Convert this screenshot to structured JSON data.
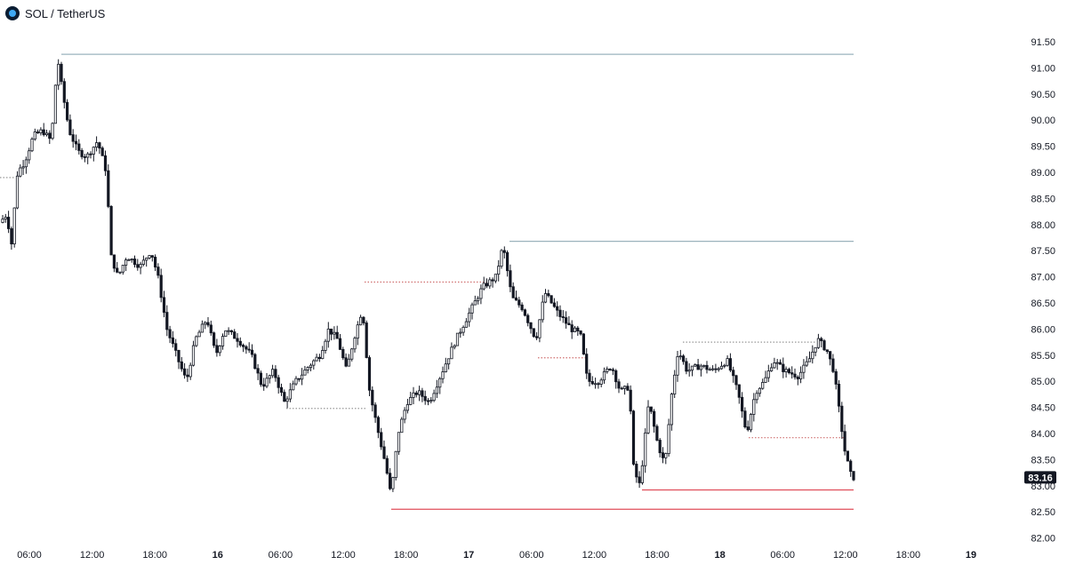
{
  "header": {
    "symbol": "SOL / TetherUS",
    "logo_icon": "solana-logo-icon"
  },
  "chart_data": {
    "type": "candlestick",
    "title": "SOL / TetherUS",
    "y_ticks": [
      "91.50",
      "91.00",
      "90.50",
      "90.00",
      "89.50",
      "89.00",
      "88.50",
      "88.00",
      "87.50",
      "87.00",
      "86.50",
      "86.00",
      "85.50",
      "85.00",
      "84.50",
      "84.00",
      "83.50",
      "83.00",
      "82.50",
      "82.00"
    ],
    "ylim": [
      82.0,
      91.6
    ],
    "x_ticks": [
      {
        "label": "06:00",
        "bold": false
      },
      {
        "label": "12:00",
        "bold": false
      },
      {
        "label": "18:00",
        "bold": false
      },
      {
        "label": "16",
        "bold": true
      },
      {
        "label": "06:00",
        "bold": false
      },
      {
        "label": "12:00",
        "bold": false
      },
      {
        "label": "18:00",
        "bold": false
      },
      {
        "label": "17",
        "bold": true
      },
      {
        "label": "06:00",
        "bold": false
      },
      {
        "label": "12:00",
        "bold": false
      },
      {
        "label": "18:00",
        "bold": false
      },
      {
        "label": "18",
        "bold": true
      },
      {
        "label": "06:00",
        "bold": false
      },
      {
        "label": "12:00",
        "bold": false
      },
      {
        "label": "18:00",
        "bold": false
      },
      {
        "label": "19",
        "bold": true
      }
    ],
    "last_price": "83.16",
    "price_path": [
      [
        0,
        88.0
      ],
      [
        10,
        88.2
      ],
      [
        15,
        87.6
      ],
      [
        22,
        89.0
      ],
      [
        30,
        89.2
      ],
      [
        40,
        89.7
      ],
      [
        50,
        89.8
      ],
      [
        60,
        89.6
      ],
      [
        67,
        91.2
      ],
      [
        72,
        90.6
      ],
      [
        80,
        89.8
      ],
      [
        90,
        89.4
      ],
      [
        100,
        89.3
      ],
      [
        112,
        89.6
      ],
      [
        122,
        89.0
      ],
      [
        127,
        87.4
      ],
      [
        135,
        87.0
      ],
      [
        145,
        87.4
      ],
      [
        160,
        87.2
      ],
      [
        172,
        87.5
      ],
      [
        180,
        87.0
      ],
      [
        190,
        86.0
      ],
      [
        205,
        85.3
      ],
      [
        212,
        85.0
      ],
      [
        222,
        85.8
      ],
      [
        235,
        86.2
      ],
      [
        245,
        85.5
      ],
      [
        255,
        86.0
      ],
      [
        270,
        85.8
      ],
      [
        285,
        85.5
      ],
      [
        297,
        84.9
      ],
      [
        310,
        85.2
      ],
      [
        322,
        84.6
      ],
      [
        335,
        85.0
      ],
      [
        350,
        85.3
      ],
      [
        362,
        85.5
      ],
      [
        372,
        86.0
      ],
      [
        382,
        85.8
      ],
      [
        392,
        85.2
      ],
      [
        400,
        85.8
      ],
      [
        410,
        86.4
      ],
      [
        418,
        84.8
      ],
      [
        428,
        84.0
      ],
      [
        436,
        83.4
      ],
      [
        442,
        82.8
      ],
      [
        450,
        84.0
      ],
      [
        460,
        84.6
      ],
      [
        472,
        84.8
      ],
      [
        485,
        84.6
      ],
      [
        500,
        85.2
      ],
      [
        515,
        85.8
      ],
      [
        530,
        86.3
      ],
      [
        545,
        86.8
      ],
      [
        560,
        87.0
      ],
      [
        568,
        87.6
      ],
      [
        578,
        86.6
      ],
      [
        590,
        86.4
      ],
      [
        605,
        85.8
      ],
      [
        615,
        86.7
      ],
      [
        630,
        86.3
      ],
      [
        645,
        86.0
      ],
      [
        655,
        85.9
      ],
      [
        663,
        85.0
      ],
      [
        675,
        85.0
      ],
      [
        690,
        85.3
      ],
      [
        700,
        84.8
      ],
      [
        710,
        84.9
      ],
      [
        715,
        83.3
      ],
      [
        722,
        83.0
      ],
      [
        732,
        84.6
      ],
      [
        742,
        83.8
      ],
      [
        750,
        83.4
      ],
      [
        758,
        84.8
      ],
      [
        765,
        85.6
      ],
      [
        775,
        85.2
      ],
      [
        790,
        85.3
      ],
      [
        805,
        85.2
      ],
      [
        820,
        85.4
      ],
      [
        832,
        84.8
      ],
      [
        842,
        84.0
      ],
      [
        852,
        84.8
      ],
      [
        862,
        85.0
      ],
      [
        872,
        85.4
      ],
      [
        885,
        85.2
      ],
      [
        900,
        85.1
      ],
      [
        912,
        85.4
      ],
      [
        922,
        85.8
      ],
      [
        932,
        85.6
      ],
      [
        940,
        85.2
      ],
      [
        948,
        84.2
      ],
      [
        953,
        83.6
      ],
      [
        960,
        83.16
      ]
    ],
    "levels": [
      {
        "name": "high-level-line",
        "price": 91.26,
        "from": 69,
        "to": 960,
        "style": "solid",
        "color": "#9bb3bd"
      },
      {
        "name": "swing-high-level-line",
        "price": 87.68,
        "from": 573,
        "to": 960,
        "style": "solid",
        "color": "#9bb3bd"
      },
      {
        "name": "low-level-line",
        "price": 82.55,
        "from": 440,
        "to": 960,
        "style": "solid",
        "color": "#e04e5a"
      },
      {
        "name": "swing-low-level-line",
        "price": 82.92,
        "from": 722,
        "to": 960,
        "style": "solid",
        "color": "#e04e5a"
      },
      {
        "name": "dotted-level-1",
        "price": 88.9,
        "from": 0,
        "to": 16,
        "style": "dotted",
        "color": "#999999"
      },
      {
        "name": "dotted-level-2",
        "price": 86.9,
        "from": 410,
        "to": 548,
        "style": "dotted",
        "color": "#d07070"
      },
      {
        "name": "dotted-level-3",
        "price": 84.48,
        "from": 322,
        "to": 412,
        "style": "dotted",
        "color": "#999999"
      },
      {
        "name": "dotted-level-4",
        "price": 85.45,
        "from": 605,
        "to": 660,
        "style": "dotted",
        "color": "#d07070"
      },
      {
        "name": "dotted-level-5",
        "price": 85.75,
        "from": 768,
        "to": 918,
        "style": "dotted",
        "color": "#999999"
      },
      {
        "name": "dotted-level-6",
        "price": 83.92,
        "from": 842,
        "to": 950,
        "style": "dotted",
        "color": "#d07070"
      }
    ],
    "colors": {
      "candle": "#131722",
      "grid": "none"
    }
  }
}
